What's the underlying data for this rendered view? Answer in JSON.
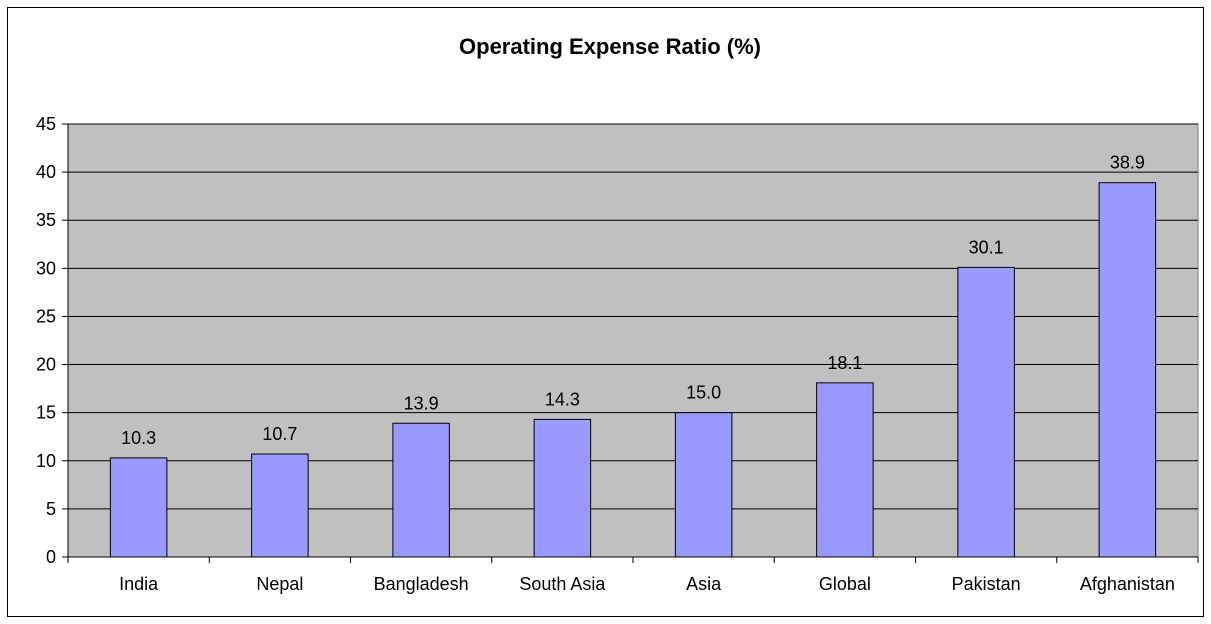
{
  "colors": {
    "plot_background": "#C0C0C0",
    "bar_fill": "#9999FF",
    "bar_stroke": "#000000",
    "gridline": "#000000"
  },
  "chart_data": {
    "type": "bar",
    "title": "Operating Expense Ratio (%)",
    "xlabel": "",
    "ylabel": "",
    "categories": [
      "India",
      "Nepal",
      "Bangladesh",
      "South Asia",
      "Asia",
      "Global",
      "Pakistan",
      "Afghanistan"
    ],
    "values": [
      10.3,
      10.7,
      13.9,
      14.3,
      15.0,
      18.1,
      30.1,
      38.9
    ],
    "data_labels": [
      "10.3",
      "10.7",
      "13.9",
      "14.3",
      "15.0",
      "18.1",
      "30.1",
      "38.9"
    ],
    "ylim": [
      0,
      45
    ],
    "yticks": [
      0,
      5,
      10,
      15,
      20,
      25,
      30,
      35,
      40,
      45
    ],
    "grid": true,
    "legend": "none"
  }
}
